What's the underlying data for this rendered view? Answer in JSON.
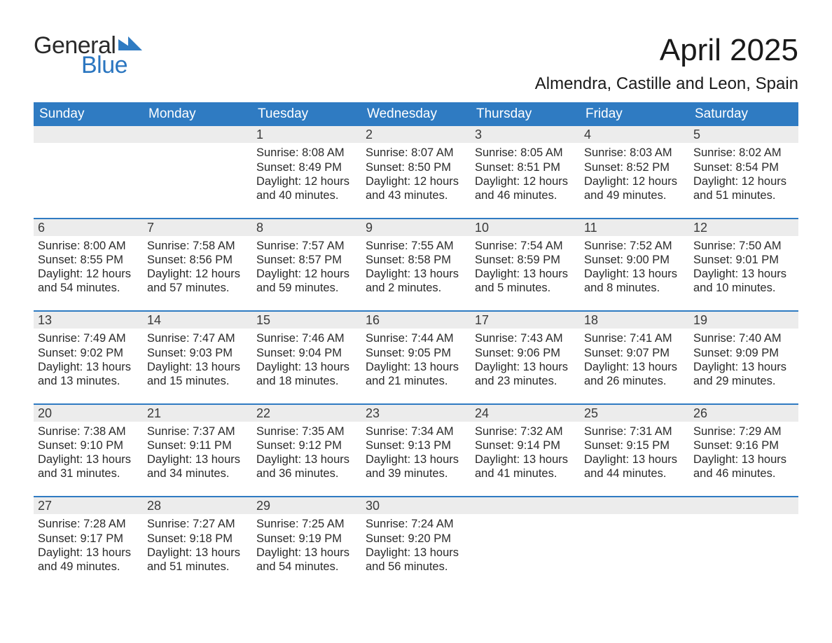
{
  "logo": {
    "text_general": "General",
    "text_blue": "Blue",
    "mark_color": "#2f7bc2"
  },
  "title": "April 2025",
  "location": "Almendra, Castille and Leon, Spain",
  "colors": {
    "header_bg": "#2f7bc2",
    "header_text": "#ffffff",
    "daynum_bg": "#ececec",
    "row_border": "#2f7bc2",
    "body_text": "#2a2a2a",
    "page_bg": "#ffffff"
  },
  "weekdays": [
    "Sunday",
    "Monday",
    "Tuesday",
    "Wednesday",
    "Thursday",
    "Friday",
    "Saturday"
  ],
  "weeks": [
    [
      {
        "day": "",
        "sunrise": "",
        "sunset": "",
        "daylight": ""
      },
      {
        "day": "",
        "sunrise": "",
        "sunset": "",
        "daylight": ""
      },
      {
        "day": "1",
        "sunrise": "Sunrise: 8:08 AM",
        "sunset": "Sunset: 8:49 PM",
        "daylight": "Daylight: 12 hours and 40 minutes."
      },
      {
        "day": "2",
        "sunrise": "Sunrise: 8:07 AM",
        "sunset": "Sunset: 8:50 PM",
        "daylight": "Daylight: 12 hours and 43 minutes."
      },
      {
        "day": "3",
        "sunrise": "Sunrise: 8:05 AM",
        "sunset": "Sunset: 8:51 PM",
        "daylight": "Daylight: 12 hours and 46 minutes."
      },
      {
        "day": "4",
        "sunrise": "Sunrise: 8:03 AM",
        "sunset": "Sunset: 8:52 PM",
        "daylight": "Daylight: 12 hours and 49 minutes."
      },
      {
        "day": "5",
        "sunrise": "Sunrise: 8:02 AM",
        "sunset": "Sunset: 8:54 PM",
        "daylight": "Daylight: 12 hours and 51 minutes."
      }
    ],
    [
      {
        "day": "6",
        "sunrise": "Sunrise: 8:00 AM",
        "sunset": "Sunset: 8:55 PM",
        "daylight": "Daylight: 12 hours and 54 minutes."
      },
      {
        "day": "7",
        "sunrise": "Sunrise: 7:58 AM",
        "sunset": "Sunset: 8:56 PM",
        "daylight": "Daylight: 12 hours and 57 minutes."
      },
      {
        "day": "8",
        "sunrise": "Sunrise: 7:57 AM",
        "sunset": "Sunset: 8:57 PM",
        "daylight": "Daylight: 12 hours and 59 minutes."
      },
      {
        "day": "9",
        "sunrise": "Sunrise: 7:55 AM",
        "sunset": "Sunset: 8:58 PM",
        "daylight": "Daylight: 13 hours and 2 minutes."
      },
      {
        "day": "10",
        "sunrise": "Sunrise: 7:54 AM",
        "sunset": "Sunset: 8:59 PM",
        "daylight": "Daylight: 13 hours and 5 minutes."
      },
      {
        "day": "11",
        "sunrise": "Sunrise: 7:52 AM",
        "sunset": "Sunset: 9:00 PM",
        "daylight": "Daylight: 13 hours and 8 minutes."
      },
      {
        "day": "12",
        "sunrise": "Sunrise: 7:50 AM",
        "sunset": "Sunset: 9:01 PM",
        "daylight": "Daylight: 13 hours and 10 minutes."
      }
    ],
    [
      {
        "day": "13",
        "sunrise": "Sunrise: 7:49 AM",
        "sunset": "Sunset: 9:02 PM",
        "daylight": "Daylight: 13 hours and 13 minutes."
      },
      {
        "day": "14",
        "sunrise": "Sunrise: 7:47 AM",
        "sunset": "Sunset: 9:03 PM",
        "daylight": "Daylight: 13 hours and 15 minutes."
      },
      {
        "day": "15",
        "sunrise": "Sunrise: 7:46 AM",
        "sunset": "Sunset: 9:04 PM",
        "daylight": "Daylight: 13 hours and 18 minutes."
      },
      {
        "day": "16",
        "sunrise": "Sunrise: 7:44 AM",
        "sunset": "Sunset: 9:05 PM",
        "daylight": "Daylight: 13 hours and 21 minutes."
      },
      {
        "day": "17",
        "sunrise": "Sunrise: 7:43 AM",
        "sunset": "Sunset: 9:06 PM",
        "daylight": "Daylight: 13 hours and 23 minutes."
      },
      {
        "day": "18",
        "sunrise": "Sunrise: 7:41 AM",
        "sunset": "Sunset: 9:07 PM",
        "daylight": "Daylight: 13 hours and 26 minutes."
      },
      {
        "day": "19",
        "sunrise": "Sunrise: 7:40 AM",
        "sunset": "Sunset: 9:09 PM",
        "daylight": "Daylight: 13 hours and 29 minutes."
      }
    ],
    [
      {
        "day": "20",
        "sunrise": "Sunrise: 7:38 AM",
        "sunset": "Sunset: 9:10 PM",
        "daylight": "Daylight: 13 hours and 31 minutes."
      },
      {
        "day": "21",
        "sunrise": "Sunrise: 7:37 AM",
        "sunset": "Sunset: 9:11 PM",
        "daylight": "Daylight: 13 hours and 34 minutes."
      },
      {
        "day": "22",
        "sunrise": "Sunrise: 7:35 AM",
        "sunset": "Sunset: 9:12 PM",
        "daylight": "Daylight: 13 hours and 36 minutes."
      },
      {
        "day": "23",
        "sunrise": "Sunrise: 7:34 AM",
        "sunset": "Sunset: 9:13 PM",
        "daylight": "Daylight: 13 hours and 39 minutes."
      },
      {
        "day": "24",
        "sunrise": "Sunrise: 7:32 AM",
        "sunset": "Sunset: 9:14 PM",
        "daylight": "Daylight: 13 hours and 41 minutes."
      },
      {
        "day": "25",
        "sunrise": "Sunrise: 7:31 AM",
        "sunset": "Sunset: 9:15 PM",
        "daylight": "Daylight: 13 hours and 44 minutes."
      },
      {
        "day": "26",
        "sunrise": "Sunrise: 7:29 AM",
        "sunset": "Sunset: 9:16 PM",
        "daylight": "Daylight: 13 hours and 46 minutes."
      }
    ],
    [
      {
        "day": "27",
        "sunrise": "Sunrise: 7:28 AM",
        "sunset": "Sunset: 9:17 PM",
        "daylight": "Daylight: 13 hours and 49 minutes."
      },
      {
        "day": "28",
        "sunrise": "Sunrise: 7:27 AM",
        "sunset": "Sunset: 9:18 PM",
        "daylight": "Daylight: 13 hours and 51 minutes."
      },
      {
        "day": "29",
        "sunrise": "Sunrise: 7:25 AM",
        "sunset": "Sunset: 9:19 PM",
        "daylight": "Daylight: 13 hours and 54 minutes."
      },
      {
        "day": "30",
        "sunrise": "Sunrise: 7:24 AM",
        "sunset": "Sunset: 9:20 PM",
        "daylight": "Daylight: 13 hours and 56 minutes."
      },
      {
        "day": "",
        "sunrise": "",
        "sunset": "",
        "daylight": ""
      },
      {
        "day": "",
        "sunrise": "",
        "sunset": "",
        "daylight": ""
      },
      {
        "day": "",
        "sunrise": "",
        "sunset": "",
        "daylight": ""
      }
    ]
  ]
}
